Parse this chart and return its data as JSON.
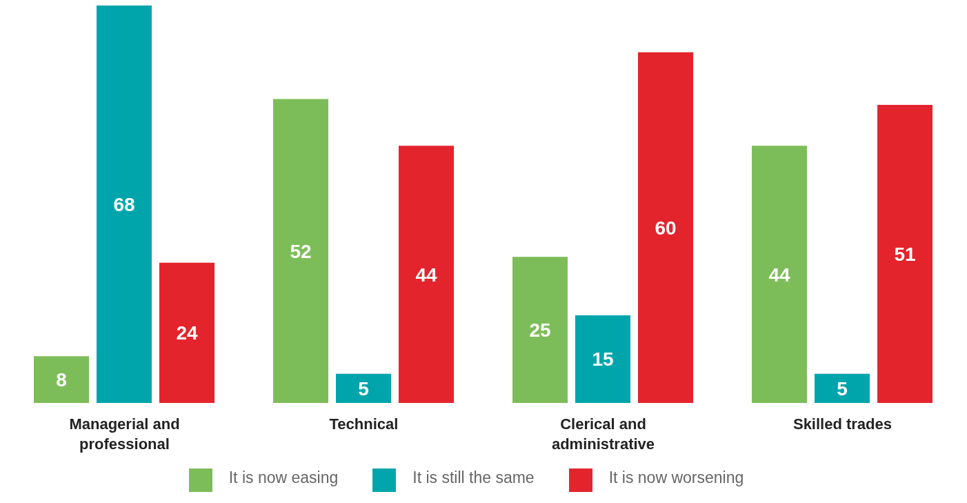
{
  "chart_data": {
    "type": "bar",
    "categories": [
      "Managerial and professional",
      "Technical",
      "Clerical and administrative",
      "Skilled trades"
    ],
    "series": [
      {
        "name": "It is now easing",
        "color": "#7dbd59",
        "values": [
          8,
          52,
          25,
          44
        ]
      },
      {
        "name": "It is still the same",
        "color": "#00a5ac",
        "values": [
          68,
          5,
          15,
          5
        ]
      },
      {
        "name": "It is now worsening",
        "color": "#e3242d",
        "values": [
          24,
          44,
          60,
          51
        ]
      }
    ],
    "ylim": [
      0,
      68
    ],
    "data_labels": true,
    "legend": "bottom",
    "grid": false,
    "tick_labels": "x"
  }
}
